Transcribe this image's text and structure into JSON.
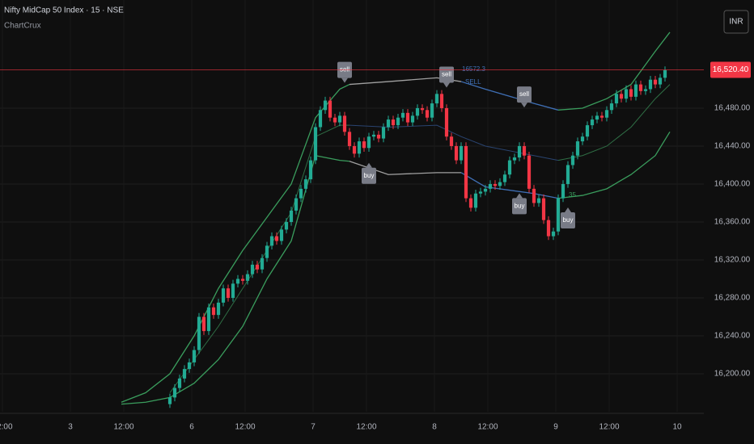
{
  "chart_data": {
    "type": "candlestick",
    "title": "Nifty MidCap 50 Index · 15 · NSE",
    "subtitle": "ChartCrux",
    "currency": "INR",
    "up_color": "#22ab94",
    "down_color": "#f23645",
    "xlim": [
      0,
      145
    ],
    "ylim": [
      16160,
      16594
    ],
    "grid": true,
    "xticks": [
      {
        "value": 0.5,
        "label": "12:00"
      },
      {
        "value": 14.5,
        "label": "3"
      },
      {
        "value": 25.5,
        "label": "12:00"
      },
      {
        "value": 39.5,
        "label": "6"
      },
      {
        "value": 50.5,
        "label": "12:00"
      },
      {
        "value": 64.5,
        "label": "7"
      },
      {
        "value": 75.5,
        "label": "12:00"
      },
      {
        "value": 89.5,
        "label": "8"
      },
      {
        "value": 100.5,
        "label": "12:00"
      },
      {
        "value": 114.5,
        "label": "9"
      },
      {
        "value": 125.5,
        "label": "12:00"
      },
      {
        "value": 139.5,
        "label": "10"
      }
    ],
    "yticks": [
      {
        "value": 16200,
        "label": "16,200.00"
      },
      {
        "value": 16240,
        "label": "16,240.00"
      },
      {
        "value": 16280,
        "label": "16,280.00"
      },
      {
        "value": 16320,
        "label": "16,320.00"
      },
      {
        "value": 16360,
        "label": "16,360.00"
      },
      {
        "value": 16400,
        "label": "16,400.00"
      },
      {
        "value": 16440,
        "label": "16,440.00"
      },
      {
        "value": 16480,
        "label": "16,480.00"
      }
    ],
    "last_price": {
      "value": 16520.4,
      "label": "16,520.40",
      "color": "#f23645"
    },
    "x": [
      35,
      36,
      37,
      38,
      39,
      40,
      41,
      42,
      43,
      44,
      45,
      46,
      47,
      48,
      49,
      50,
      51,
      52,
      53,
      54,
      55,
      56,
      57,
      58,
      59,
      60,
      61,
      62,
      63,
      64,
      65,
      66,
      67,
      68,
      69,
      70,
      71,
      72,
      73,
      74,
      75,
      76,
      77,
      78,
      79,
      80,
      81,
      82,
      83,
      84,
      85,
      86,
      87,
      88,
      89,
      90,
      91,
      92,
      93,
      94,
      95,
      96,
      97,
      98,
      99,
      100,
      101,
      102,
      103,
      104,
      105,
      106,
      107,
      108,
      109,
      110,
      111,
      112,
      113,
      114,
      115,
      116,
      117,
      118,
      119,
      120,
      121,
      122,
      123,
      124,
      125,
      126,
      127,
      128,
      129,
      130,
      131,
      132,
      133,
      134,
      135,
      136,
      137
    ],
    "open": [
      16168,
      16175,
      16185,
      16195,
      16205,
      16212,
      16225,
      16260,
      16245,
      16270,
      16262,
      16275,
      16290,
      16280,
      16295,
      16300,
      16298,
      16305,
      16315,
      16310,
      16322,
      16335,
      16345,
      16340,
      16352,
      16360,
      16372,
      16385,
      16395,
      16405,
      16425,
      16460,
      16478,
      16488,
      16470,
      16465,
      16472,
      16455,
      16440,
      16432,
      16445,
      16438,
      16450,
      16452,
      16448,
      16460,
      16468,
      16462,
      16470,
      16475,
      16465,
      16472,
      16480,
      16478,
      16470,
      16485,
      16495,
      16480,
      16450,
      16440,
      16425,
      16440,
      16385,
      16375,
      16390,
      16392,
      16395,
      16400,
      16398,
      16402,
      16410,
      16425,
      16428,
      16440,
      16430,
      16395,
      16380,
      16385,
      16362,
      16345,
      16350,
      16385,
      16400,
      16420,
      16430,
      16445,
      16450,
      16462,
      16468,
      16472,
      16470,
      16478,
      16485,
      16495,
      16490,
      16500,
      16492,
      16505,
      16498,
      16500,
      16510,
      16505,
      16512
    ],
    "high": [
      16179,
      16189,
      16199,
      16209,
      16216,
      16229,
      16264,
      16264,
      16274,
      16274,
      16279,
      16294,
      16294,
      16299,
      16304,
      16304,
      16309,
      16319,
      16319,
      16326,
      16339,
      16349,
      16349,
      16356,
      16364,
      16376,
      16389,
      16399,
      16409,
      16429,
      16464,
      16482,
      16492,
      16492,
      16474,
      16476,
      16476,
      16459,
      16444,
      16449,
      16449,
      16454,
      16456,
      16456,
      16464,
      16472,
      16472,
      16474,
      16479,
      16479,
      16476,
      16484,
      16484,
      16482,
      16489,
      16499,
      16499,
      16484,
      16454,
      16444,
      16444,
      16444,
      16389,
      16394,
      16396,
      16399,
      16404,
      16404,
      16406,
      16414,
      16429,
      16432,
      16444,
      16444,
      16434,
      16399,
      16389,
      16389,
      16366,
      16354,
      16389,
      16404,
      16424,
      16434,
      16449,
      16454,
      16466,
      16472,
      16476,
      16476,
      16482,
      16489,
      16499,
      16499,
      16504,
      16504,
      16509,
      16509,
      16504,
      16514,
      16514,
      16516,
      16524
    ],
    "low": [
      16164,
      16171,
      16181,
      16191,
      16201,
      16208,
      16221,
      16241,
      16241,
      16258,
      16258,
      16271,
      16276,
      16276,
      16291,
      16294,
      16294,
      16301,
      16306,
      16306,
      16318,
      16331,
      16336,
      16336,
      16348,
      16356,
      16368,
      16381,
      16391,
      16401,
      16421,
      16456,
      16474,
      16466,
      16461,
      16461,
      16451,
      16436,
      16428,
      16428,
      16434,
      16434,
      16446,
      16444,
      16444,
      16456,
      16458,
      16458,
      16466,
      16461,
      16461,
      16468,
      16474,
      16466,
      16466,
      16481,
      16476,
      16446,
      16436,
      16421,
      16421,
      16381,
      16371,
      16371,
      16386,
      16388,
      16391,
      16394,
      16394,
      16398,
      16406,
      16421,
      16424,
      16426,
      16391,
      16376,
      16376,
      16358,
      16341,
      16341,
      16346,
      16381,
      16396,
      16416,
      16426,
      16441,
      16446,
      16458,
      16464,
      16466,
      16466,
      16474,
      16481,
      16486,
      16486,
      16488,
      16488,
      16494,
      16494,
      16496,
      16501,
      16501,
      16508
    ],
    "close": [
      16175,
      16185,
      16195,
      16205,
      16212,
      16225,
      16260,
      16245,
      16270,
      16262,
      16275,
      16290,
      16280,
      16295,
      16300,
      16298,
      16305,
      16315,
      16310,
      16322,
      16335,
      16345,
      16340,
      16352,
      16360,
      16372,
      16385,
      16395,
      16405,
      16425,
      16460,
      16478,
      16488,
      16470,
      16465,
      16472,
      16455,
      16440,
      16432,
      16445,
      16438,
      16450,
      16452,
      16448,
      16460,
      16468,
      16462,
      16470,
      16475,
      16465,
      16472,
      16480,
      16478,
      16470,
      16485,
      16495,
      16480,
      16450,
      16440,
      16425,
      16440,
      16385,
      16375,
      16390,
      16392,
      16395,
      16400,
      16398,
      16402,
      16410,
      16425,
      16428,
      16440,
      16430,
      16395,
      16380,
      16385,
      16362,
      16345,
      16350,
      16385,
      16400,
      16420,
      16430,
      16445,
      16450,
      16462,
      16468,
      16472,
      16470,
      16478,
      16485,
      16495,
      16490,
      16500,
      16492,
      16505,
      16498,
      16500,
      16510,
      16505,
      16512,
      16520
    ],
    "bands": [
      {
        "color": "#3a9d5d",
        "width": 1.3,
        "x": [
          25,
          30,
          35,
          40,
          45,
          50,
          55,
          60,
          65,
          70,
          72
        ],
        "values": [
          16170,
          16180,
          16200,
          16240,
          16290,
          16330,
          16365,
          16400,
          16470,
          16500,
          16505
        ]
      },
      {
        "color": "#a0a0a0",
        "width": 1.3,
        "x": [
          72,
          80,
          90,
          95
        ],
        "values": [
          16505,
          16508,
          16512,
          16508
        ]
      },
      {
        "color": "#3f6fb5",
        "width": 1.3,
        "x": [
          95,
          100,
          110,
          115
        ],
        "values": [
          16508,
          16500,
          16485,
          16478
        ]
      },
      {
        "color": "#3a9d5d",
        "width": 1.3,
        "x": [
          115,
          120,
          125,
          130,
          135,
          138
        ],
        "values": [
          16478,
          16480,
          16490,
          16505,
          16540,
          16560
        ]
      },
      {
        "color": "#3a9d5d",
        "width": 1.3,
        "x": [
          25,
          30,
          35,
          40,
          45,
          50,
          55,
          60,
          65,
          70,
          72
        ],
        "values": [
          16168,
          16170,
          16175,
          16190,
          16215,
          16250,
          16300,
          16340,
          16430,
          16425,
          16424
        ]
      },
      {
        "color": "#a0a0a0",
        "width": 1.3,
        "x": [
          72,
          80,
          90,
          95
        ],
        "values": [
          16424,
          16410,
          16412,
          16412
        ]
      },
      {
        "color": "#3f6fb5",
        "width": 1.3,
        "x": [
          95,
          100,
          110,
          115
        ],
        "values": [
          16412,
          16397,
          16390,
          16385
        ]
      },
      {
        "color": "#3a9d5d",
        "width": 1.3,
        "x": [
          115,
          120,
          125,
          130,
          135,
          138
        ],
        "values": [
          16385,
          16388,
          16395,
          16410,
          16430,
          16455
        ]
      },
      {
        "color": "#2f6e45",
        "width": 1,
        "x": [
          35,
          40,
          45,
          50,
          55,
          60,
          65,
          70,
          72
        ],
        "values": [
          16180,
          16215,
          16250,
          16290,
          16330,
          16370,
          16450,
          16462,
          16462
        ]
      },
      {
        "color": "#2a4470",
        "width": 1,
        "x": [
          72,
          80,
          90,
          95,
          100,
          110,
          115
        ],
        "values": [
          16462,
          16460,
          16462,
          16450,
          16440,
          16430,
          16425
        ]
      },
      {
        "color": "#2f6e45",
        "width": 1,
        "x": [
          115,
          120,
          125,
          130,
          135,
          138
        ],
        "values": [
          16425,
          16430,
          16440,
          16460,
          16490,
          16505
        ]
      }
    ],
    "signals": [
      {
        "label": "sell",
        "side": "above",
        "x": 71,
        "price": 16505
      },
      {
        "label": "buy",
        "side": "below",
        "x": 76,
        "price": 16424
      },
      {
        "label": "sell",
        "side": "above",
        "x": 92,
        "price": 16500
      },
      {
        "label": "sell",
        "side": "above",
        "x": 108,
        "price": 16479
      },
      {
        "label": "buy",
        "side": "below",
        "x": 107,
        "price": 16392
      },
      {
        "label": "buy",
        "side": "below",
        "x": 117,
        "price": 16377
      }
    ],
    "annotations": [
      "16572.3",
      "SELL",
      "35"
    ]
  }
}
